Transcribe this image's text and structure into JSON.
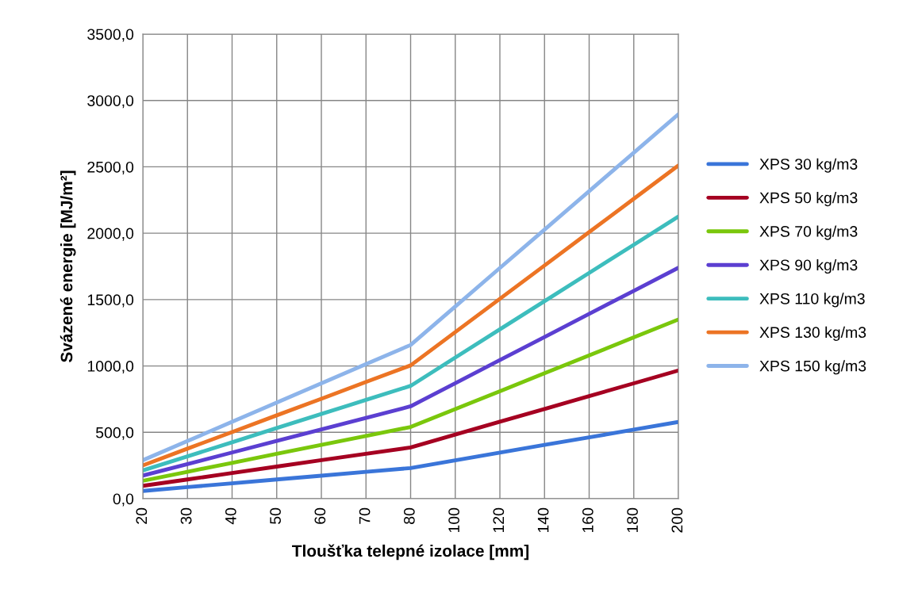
{
  "chart_data": {
    "type": "line",
    "xlabel": "Tloušťka telepné izolace [mm]",
    "ylabel": "Svázené energie [MJ/m²]",
    "categories": [
      "20",
      "30",
      "40",
      "50",
      "60",
      "70",
      "80",
      "100",
      "120",
      "140",
      "160",
      "180",
      "200"
    ],
    "ylim": [
      0,
      3500
    ],
    "yticks": [
      {
        "value": 0,
        "label": "0,0"
      },
      {
        "value": 500,
        "label": "500,0"
      },
      {
        "value": 1000,
        "label": "1000,0"
      },
      {
        "value": 1500,
        "label": "1500,0"
      },
      {
        "value": 2000,
        "label": "2000,0"
      },
      {
        "value": 2500,
        "label": "2500,0"
      },
      {
        "value": 3000,
        "label": "3000,0"
      },
      {
        "value": 3500,
        "label": "3500,0"
      }
    ],
    "grid": true,
    "legend": "right",
    "marker": "none",
    "line_style": "solid",
    "series": [
      {
        "name": "XPS 30 kg/m3",
        "color": "#3a75d9",
        "values": [
          58,
          87,
          116,
          145,
          173,
          202,
          231,
          289,
          347,
          405,
          462,
          520,
          578
        ]
      },
      {
        "name": "XPS 50 kg/m3",
        "color": "#a50021",
        "values": [
          97,
          145,
          193,
          242,
          290,
          338,
          386,
          483,
          580,
          676,
          773,
          869,
          966
        ]
      },
      {
        "name": "XPS 70 kg/m3",
        "color": "#7ac70c",
        "values": [
          135,
          203,
          270,
          338,
          405,
          473,
          540,
          675,
          810,
          945,
          1080,
          1215,
          1350
        ]
      },
      {
        "name": "XPS 90 kg/m3",
        "color": "#5b3fd1",
        "values": [
          174,
          261,
          348,
          435,
          522,
          609,
          696,
          870,
          1044,
          1218,
          1392,
          1566,
          1740
        ]
      },
      {
        "name": "XPS 110 kg/m3",
        "color": "#3dbdbd",
        "values": [
          213,
          319,
          425,
          532,
          638,
          744,
          850,
          1063,
          1276,
          1488,
          1701,
          1913,
          2126
        ]
      },
      {
        "name": "XPS 130 kg/m3",
        "color": "#ec7424",
        "values": [
          251,
          377,
          502,
          628,
          753,
          879,
          1004,
          1255,
          1506,
          1757,
          2008,
          2259,
          2510
        ]
      },
      {
        "name": "XPS 150 kg/m3",
        "color": "#8db4ea",
        "values": [
          290,
          434,
          579,
          724,
          869,
          1014,
          1158,
          1448,
          1738,
          2027,
          2317,
          2606,
          2896
        ]
      }
    ]
  }
}
